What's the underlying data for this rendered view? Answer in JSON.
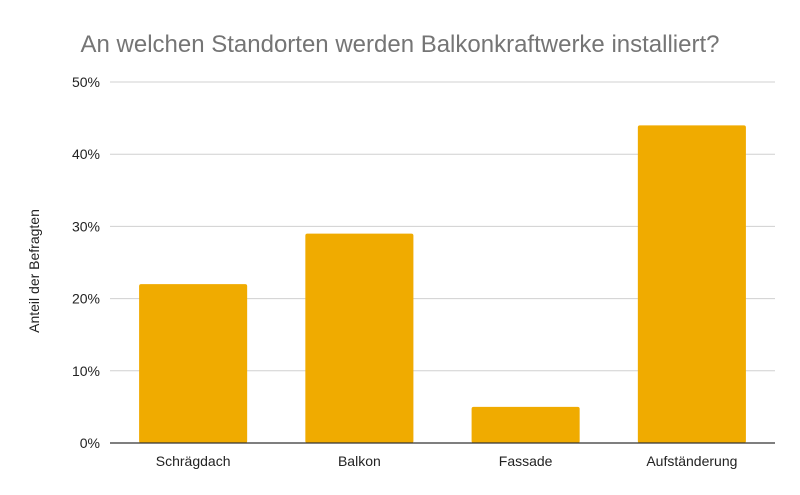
{
  "chart_data": {
    "type": "bar",
    "title": "An welchen Standorten werden Balkonkraftwerke installiert?",
    "xlabel": "",
    "ylabel": "Anteil der Befragten",
    "categories": [
      "Schrägdach",
      "Balkon",
      "Fassade",
      "Aufständerung"
    ],
    "values": [
      22,
      29,
      5,
      44
    ],
    "ylim": [
      0,
      50
    ],
    "yticks": [
      "0%",
      "10%",
      "20%",
      "30%",
      "40%",
      "50%"
    ],
    "grid": true,
    "bar_color": "#f0ab00"
  }
}
